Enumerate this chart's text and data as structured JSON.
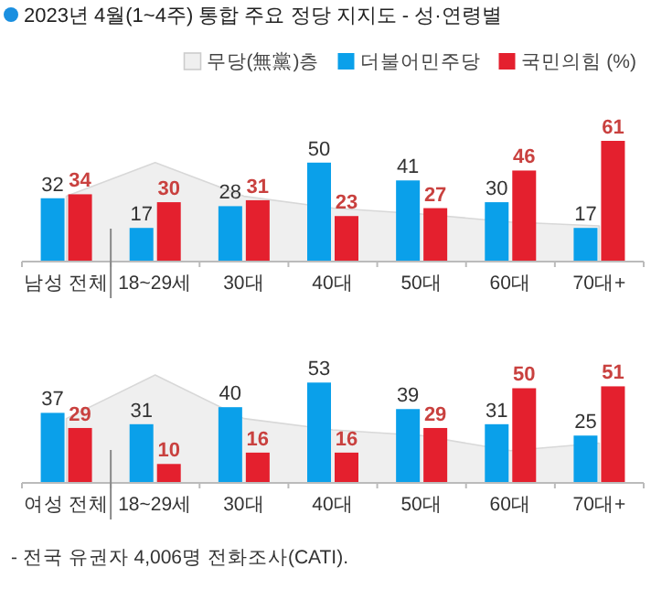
{
  "chart_data": [
    {
      "type": "bar",
      "title": "2023년 4월(1~4주) 통합 주요 정당 지지도 - 성·연령별",
      "legend": "top right",
      "categories": [
        "남성 전체",
        "18~29세",
        "30대",
        "40대",
        "50대",
        "60대",
        "70대+"
      ],
      "series": [
        {
          "name": "무당(無黨)층",
          "type": "area",
          "color": "#efefef",
          "values": [
            33,
            50,
            33,
            27,
            24,
            20,
            18
          ]
        },
        {
          "name": "더불어민주당",
          "type": "bar",
          "color": "#0aa0ea",
          "values": [
            32,
            17,
            28,
            50,
            41,
            30,
            17
          ],
          "value_labels": [
            "32",
            "17",
            "28",
            "50",
            "41",
            "30",
            "17"
          ]
        },
        {
          "name": "국민의힘 (%)",
          "type": "bar",
          "color": "#e4202e",
          "values": [
            34,
            30,
            31,
            23,
            27,
            46,
            61
          ],
          "value_labels": [
            "34",
            "30",
            "31",
            "23",
            "27",
            "46",
            "61"
          ]
        }
      ]
    },
    {
      "type": "bar",
      "categories": [
        "여성 전체",
        "18~29세",
        "30대",
        "40대",
        "50대",
        "60대",
        "70대+"
      ],
      "series": [
        {
          "type": "area",
          "color": "#efefef",
          "values": [
            34,
            57,
            34,
            28,
            25,
            17,
            21
          ]
        },
        {
          "type": "bar",
          "color": "#0aa0ea",
          "values": [
            37,
            31,
            40,
            53,
            39,
            31,
            25
          ],
          "value_labels": [
            "37",
            "31",
            "40",
            "53",
            "39",
            "31",
            "25"
          ]
        },
        {
          "type": "bar",
          "color": "#e4202e",
          "values": [
            29,
            10,
            16,
            16,
            29,
            50,
            51
          ],
          "value_labels": [
            "29",
            "10",
            "16",
            "16",
            "29",
            "50",
            "51"
          ]
        }
      ],
      "annotations": [
        "- 전국 유권자 4,006명 전화조사(CATI)."
      ]
    }
  ]
}
